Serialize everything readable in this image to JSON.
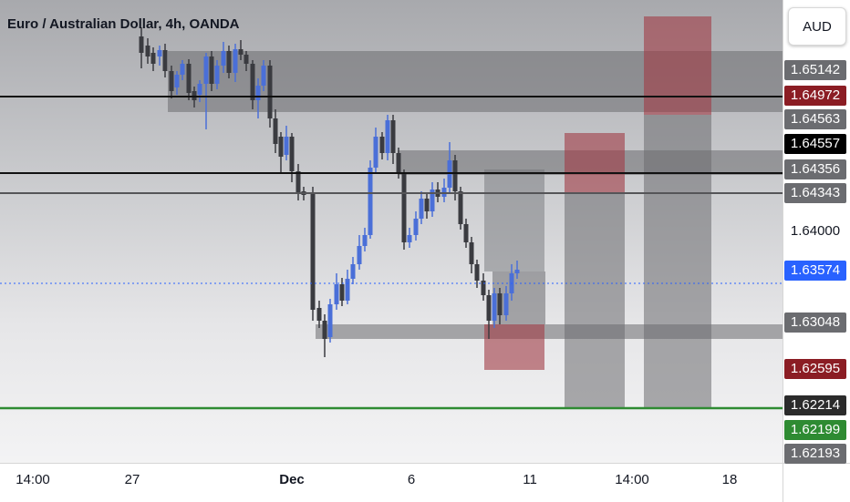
{
  "symbol_title": "Euro / Australian Dollar, 4h, OANDA",
  "currency_button": "AUD",
  "price_labels": [
    {
      "text": "1.65142",
      "bg": "#6b6c70",
      "fg": "#ffffff"
    },
    {
      "text": "1.64972",
      "bg": "#8b1d24",
      "fg": "#ffffff"
    },
    {
      "text": "1.64563",
      "bg": "#6b6c70",
      "fg": "#ffffff"
    },
    {
      "text": "1.64557",
      "bg": "#000000",
      "fg": "#ffffff"
    },
    {
      "text": "1.64356",
      "bg": "#6b6c70",
      "fg": "#ffffff"
    },
    {
      "text": "1.64343",
      "bg": "#6b6c70",
      "fg": "#ffffff"
    },
    {
      "text": "1.64000",
      "bg": "transparent",
      "fg": "#131722"
    },
    {
      "text": "1.63574",
      "bg": "#2962ff",
      "fg": "#ffffff"
    },
    {
      "text": "1.63048",
      "bg": "#6b6c70",
      "fg": "#ffffff"
    },
    {
      "text": "1.62595",
      "bg": "#8b1d24",
      "fg": "#ffffff"
    },
    {
      "text": "1.62214",
      "bg": "#2b2b2b",
      "fg": "#ffffff"
    },
    {
      "text": "1.62199",
      "bg": "#2e8b32",
      "fg": "#ffffff"
    },
    {
      "text": "1.62193",
      "bg": "#6b6c70",
      "fg": "#ffffff"
    }
  ],
  "time_labels": [
    "14:00",
    "27",
    "Dec",
    "6",
    "11",
    "14:00",
    "18"
  ],
  "colors": {
    "bull": "#4a6fd8",
    "bear": "#3a3b40",
    "zone": "#6b6c70",
    "loss": "#a03a44",
    "take_profit_line": "#2e8b32",
    "horizontal_line": "#111111"
  }
}
